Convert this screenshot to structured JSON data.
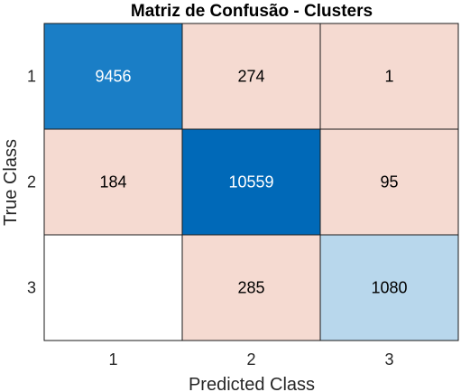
{
  "chart_data": {
    "type": "heatmap",
    "title": "Matriz de Confusão - Clusters",
    "xlabel": "Predicted Class",
    "ylabel": "True Class",
    "x_categories": [
      "1",
      "2",
      "3"
    ],
    "y_categories": [
      "1",
      "2",
      "3"
    ],
    "values": [
      [
        9456,
        274,
        1
      ],
      [
        184,
        10559,
        95
      ],
      [
        null,
        285,
        1080
      ]
    ],
    "labels": [
      [
        "9456",
        "274",
        "1"
      ],
      [
        "184",
        "10559",
        "95"
      ],
      [
        "",
        "285",
        "1080"
      ]
    ],
    "cell_colors": [
      [
        "#1a7ec6",
        "#f5dad1",
        "#f5dad1"
      ],
      [
        "#f5dad1",
        "#0069b8",
        "#f5dad1"
      ],
      [
        "#ffffff",
        "#f5dad1",
        "#b8d7ec"
      ]
    ],
    "label_colors": [
      [
        "#ffffff",
        "#000000",
        "#000000"
      ],
      [
        "#000000",
        "#ffffff",
        "#000000"
      ],
      [
        "#000000",
        "#000000",
        "#000000"
      ]
    ]
  }
}
